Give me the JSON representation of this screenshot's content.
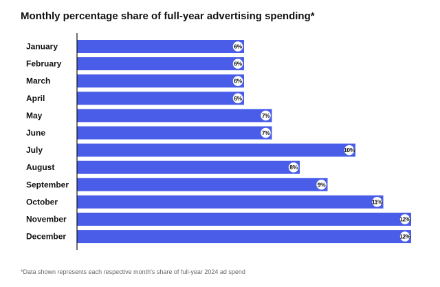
{
  "chart_data": {
    "type": "bar",
    "orientation": "horizontal",
    "title": "Monthly percentage share of full-year advertising spending*",
    "categories": [
      "January",
      "February",
      "March",
      "April",
      "May",
      "June",
      "July",
      "August",
      "September",
      "October",
      "November",
      "December"
    ],
    "values": [
      6,
      6,
      6,
      6,
      7,
      7,
      10,
      8,
      9,
      11,
      12,
      12
    ],
    "value_labels": [
      "6%",
      "6%",
      "6%",
      "6%",
      "7%",
      "7%",
      "10%",
      "8%",
      "9%",
      "11%",
      "12%",
      "12%"
    ],
    "xlim": [
      0,
      12
    ],
    "xlabel": "",
    "ylabel": "",
    "grid": false,
    "legend": "none",
    "footnote": "*Data shown represents each respective month's share of full-year 2024 ad spend"
  },
  "colors": {
    "bar": "#4a5de8",
    "label_bubble_fill": "#ffffff",
    "label_bubble_stroke": "#4a5de8",
    "axis": "#111111"
  }
}
